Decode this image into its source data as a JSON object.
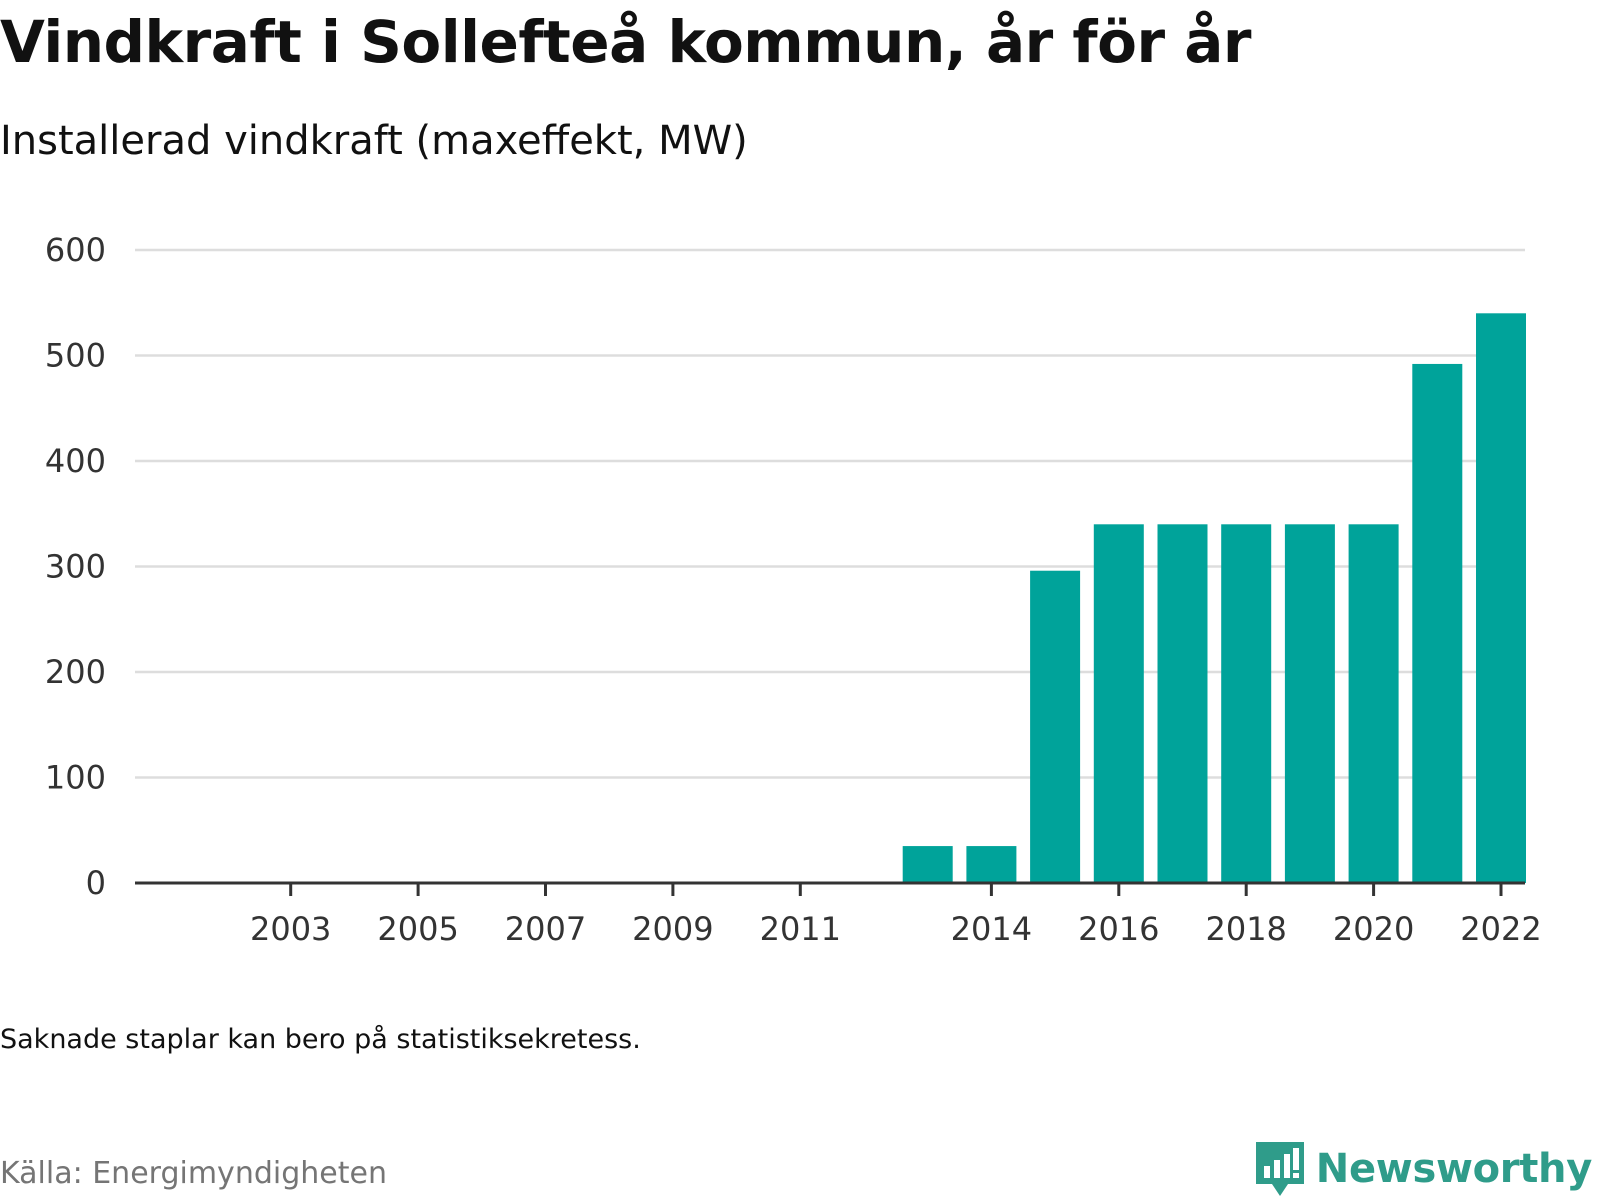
{
  "title": "Vindkraft i Sollefteå kommun, år för år",
  "subtitle": "Installerad vindkraft (maxeffekt, MW)",
  "note": "Saknade staplar kan bero på statistiksekretess.",
  "source": "Källa: Energimyndigheten",
  "brand": {
    "name": "Newsworthy",
    "icon": "newsworthy-logo-icon",
    "color": "#2f9c8a"
  },
  "colors": {
    "bar": "#00a39a",
    "grid": "#dddddd",
    "axis": "#333333"
  },
  "chart_data": {
    "type": "bar",
    "categories": [
      "2002",
      "2003",
      "2004",
      "2005",
      "2006",
      "2007",
      "2008",
      "2009",
      "2010",
      "2011",
      "2012",
      "2013",
      "2014",
      "2015",
      "2016",
      "2017",
      "2018",
      "2019",
      "2020",
      "2021",
      "2022"
    ],
    "x_tick_labels": [
      "2003",
      "2005",
      "2007",
      "2009",
      "2011",
      "2014",
      "2016",
      "2018",
      "2020",
      "2022"
    ],
    "values": [
      null,
      null,
      null,
      null,
      null,
      null,
      null,
      null,
      null,
      null,
      null,
      35,
      35,
      296,
      340,
      340,
      340,
      340,
      340,
      492,
      540
    ],
    "ylim": [
      0,
      600
    ],
    "y_ticks": [
      0,
      100,
      200,
      300,
      400,
      500,
      600
    ],
    "grid": true,
    "title": "Vindkraft i Sollefteå kommun, år för år",
    "subtitle": "Installerad vindkraft (maxeffekt, MW)",
    "xlabel": "",
    "ylabel": ""
  }
}
